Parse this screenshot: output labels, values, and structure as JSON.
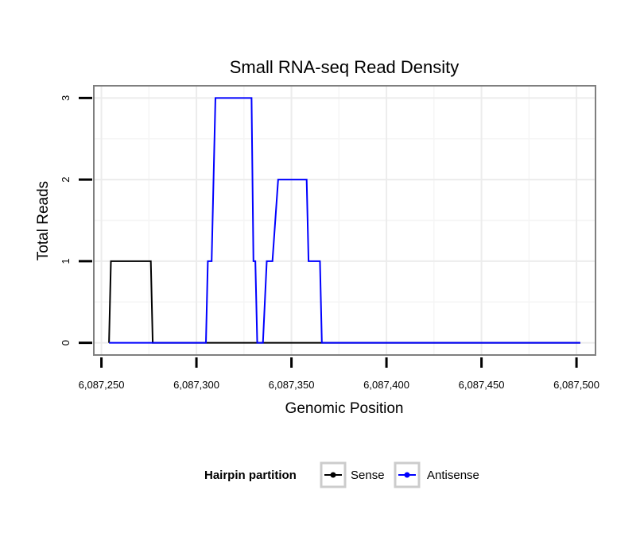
{
  "chart_data": {
    "type": "line",
    "title": "Small RNA-seq Read Density",
    "xlabel": "Genomic Position",
    "ylabel": "Total Reads",
    "xlim": [
      6087246,
      6087510
    ],
    "ylim": [
      -0.15,
      3.15
    ],
    "x_ticks": [
      {
        "value": 6087250,
        "label": "6,087,250"
      },
      {
        "value": 6087300,
        "label": "6,087,300"
      },
      {
        "value": 6087350,
        "label": "6,087,350"
      },
      {
        "value": 6087400,
        "label": "6,087,400"
      },
      {
        "value": 6087450,
        "label": "6,087,450"
      },
      {
        "value": 6087500,
        "label": "6,087,500"
      }
    ],
    "y_ticks": [
      {
        "value": 0,
        "label": "0"
      },
      {
        "value": 1,
        "label": "1"
      },
      {
        "value": 2,
        "label": "2"
      },
      {
        "value": 3,
        "label": "3"
      }
    ],
    "grid": true,
    "legend": {
      "title": "Hairpin partition",
      "position": "bottom"
    },
    "series": [
      {
        "name": "Sense",
        "color": "#000000",
        "points": [
          [
            6087254,
            0
          ],
          [
            6087255,
            1
          ],
          [
            6087276,
            1
          ],
          [
            6087277,
            0
          ],
          [
            6087502,
            0
          ]
        ]
      },
      {
        "name": "Antisense",
        "color": "#0000ff",
        "points": [
          [
            6087254,
            0
          ],
          [
            6087305,
            0
          ],
          [
            6087306,
            1
          ],
          [
            6087308,
            1
          ],
          [
            6087310,
            3
          ],
          [
            6087329,
            3
          ],
          [
            6087330,
            1
          ],
          [
            6087331,
            1
          ],
          [
            6087332,
            0
          ],
          [
            6087335,
            0
          ],
          [
            6087337,
            1
          ],
          [
            6087340,
            1
          ],
          [
            6087343,
            2
          ],
          [
            6087358,
            2
          ],
          [
            6087359,
            1
          ],
          [
            6087365,
            1
          ],
          [
            6087366,
            0
          ],
          [
            6087502,
            0
          ]
        ]
      }
    ]
  }
}
